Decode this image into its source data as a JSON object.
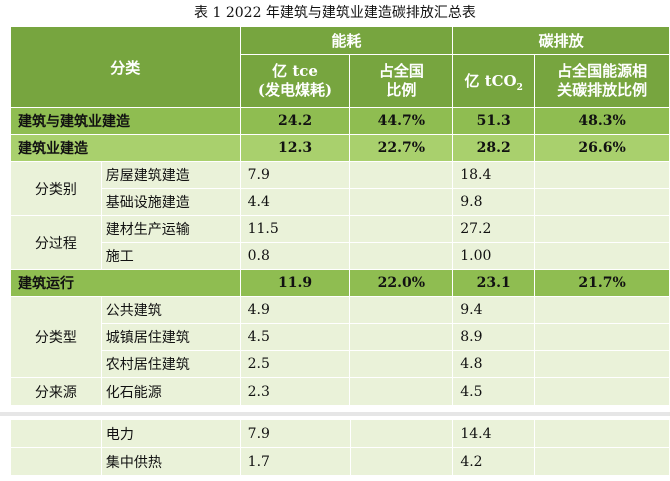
{
  "caption": "表 1 2022 年建筑与建筑业建造碳排放汇总表",
  "header": {
    "category": "分类",
    "energy": "能耗",
    "carbon": "碳排放",
    "energy_unit_line1": "亿 tce",
    "energy_unit_line2": "(发电煤耗)",
    "energy_share_line1": "占全国",
    "energy_share_line2": "比例",
    "carbon_unit_main": "亿 tCO",
    "carbon_unit_sub": "2",
    "carbon_share_line1": "占全国能源相",
    "carbon_share_line2": "关碳排放比例"
  },
  "totals": {
    "all": {
      "label": "建筑与建筑业建造",
      "energy": "24.2",
      "energy_share": "44.7%",
      "carbon": "51.3",
      "carbon_share": "48.3%"
    },
    "construction": {
      "label": "建筑业建造",
      "energy": "12.3",
      "energy_share": "22.7%",
      "carbon": "28.2",
      "carbon_share": "26.6%"
    },
    "operation": {
      "label": "建筑运行",
      "energy": "11.9",
      "energy_share": "22.0%",
      "carbon": "23.1",
      "carbon_share": "21.7%"
    }
  },
  "groups": {
    "by_type": "分类别",
    "by_process": "分过程",
    "by_building": "分类型",
    "by_source": "分来源"
  },
  "rows": {
    "housing": {
      "label": "房屋建筑建造",
      "energy": "7.9",
      "carbon": "18.4"
    },
    "infra": {
      "label": "基础设施建造",
      "energy": "4.4",
      "carbon": "9.8"
    },
    "material": {
      "label": "建材生产运输",
      "energy": "11.5",
      "carbon": "27.2"
    },
    "site": {
      "label": "施工",
      "energy": "0.8",
      "carbon": "1.00"
    },
    "public": {
      "label": "公共建筑",
      "energy": "4.9",
      "carbon": "9.4"
    },
    "urban": {
      "label": "城镇居住建筑",
      "energy": "4.5",
      "carbon": "8.9"
    },
    "rural": {
      "label": "农村居住建筑",
      "energy": "2.5",
      "carbon": "4.8"
    },
    "fossil": {
      "label": "化石能源",
      "energy": "2.3",
      "carbon": "4.5"
    },
    "power": {
      "label": "电力",
      "energy": "7.9",
      "carbon": "14.4"
    },
    "heat": {
      "label": "集中供热",
      "energy": "1.7",
      "carbon": "4.2"
    }
  }
}
